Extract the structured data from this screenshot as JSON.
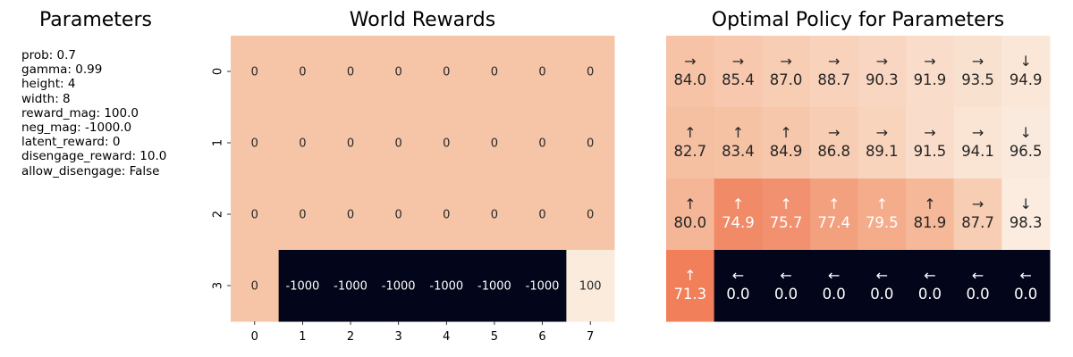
{
  "parameters": {
    "title": "Parameters",
    "lines": [
      "prob: 0.7",
      "gamma: 0.99",
      "height: 4",
      "width: 8",
      "reward_mag: 100.0",
      "neg_mag: -1000.0",
      "latent_reward: 0",
      "disengage_reward: 10.0",
      "allow_disengage: False"
    ]
  },
  "chart_data": [
    {
      "type": "heatmap",
      "title": "World Rewards",
      "xlabel": "",
      "ylabel": "",
      "x_tick_labels": [
        "0",
        "1",
        "2",
        "3",
        "4",
        "5",
        "6",
        "7"
      ],
      "y_tick_labels": [
        "0",
        "1",
        "2",
        "3"
      ],
      "grid": false,
      "values": [
        [
          0,
          0,
          0,
          0,
          0,
          0,
          0,
          0
        ],
        [
          0,
          0,
          0,
          0,
          0,
          0,
          0,
          0
        ],
        [
          0,
          0,
          0,
          0,
          0,
          0,
          0,
          0
        ],
        [
          0,
          -1000,
          -1000,
          -1000,
          -1000,
          -1000,
          -1000,
          100
        ]
      ],
      "colors": [
        [
          "#f6c5a8",
          "#f6c5a8",
          "#f6c5a8",
          "#f6c5a8",
          "#f6c5a8",
          "#f6c5a8",
          "#f6c5a8",
          "#f6c5a8"
        ],
        [
          "#f6c5a8",
          "#f6c5a8",
          "#f6c5a8",
          "#f6c5a8",
          "#f6c5a8",
          "#f6c5a8",
          "#f6c5a8",
          "#f6c5a8"
        ],
        [
          "#f6c5a8",
          "#f6c5a8",
          "#f6c5a8",
          "#f6c5a8",
          "#f6c5a8",
          "#f6c5a8",
          "#f6c5a8",
          "#f6c5a8"
        ],
        [
          "#f6c5a8",
          "#03051a",
          "#03051a",
          "#03051a",
          "#03051a",
          "#03051a",
          "#03051a",
          "#faebdd"
        ]
      ]
    },
    {
      "type": "heatmap",
      "title": "Optimal Policy for Parameters",
      "xlabel": "",
      "ylabel": "",
      "x_tick_labels": [],
      "y_tick_labels": [],
      "grid": false,
      "arrows": [
        [
          "→",
          "→",
          "→",
          "→",
          "→",
          "→",
          "→",
          "↓"
        ],
        [
          "↑",
          "↑",
          "↑",
          "→",
          "→",
          "→",
          "→",
          "↓"
        ],
        [
          "↑",
          "↑",
          "↑",
          "↑",
          "↑",
          "↑",
          "→",
          "↓"
        ],
        [
          "↑",
          "←",
          "←",
          "←",
          "←",
          "←",
          "←",
          "←"
        ]
      ],
      "values": [
        [
          "84.0",
          "85.4",
          "87.0",
          "88.7",
          "90.3",
          "91.9",
          "93.5",
          "94.9"
        ],
        [
          "82.7",
          "83.4",
          "84.9",
          "86.8",
          "89.1",
          "91.5",
          "94.1",
          "96.5"
        ],
        [
          "80.0",
          "74.9",
          "75.7",
          "77.4",
          "79.5",
          "81.9",
          "87.7",
          "98.3"
        ],
        [
          "71.3",
          "0.0",
          "0.0",
          "0.0",
          "0.0",
          "0.0",
          "0.0",
          "0.0"
        ]
      ],
      "colors": [
        [
          "#f6c3a6",
          "#f7c8ad",
          "#f7cdb4",
          "#f8d2ba",
          "#f8d6c1",
          "#f9dcc9",
          "#f9e1d0",
          "#fae7d8"
        ],
        [
          "#f5bfa1",
          "#f6c2a4",
          "#f6c7ab",
          "#f7cdb3",
          "#f8d4bd",
          "#f9ddca",
          "#fae4d3",
          "#faeadd"
        ],
        [
          "#f4b696",
          "#f18a66",
          "#f29170",
          "#f3a07f",
          "#f4ac8b",
          "#f5b898",
          "#f7cdb3",
          "#fbecdf"
        ],
        [
          "#f07f5a",
          "#03051a",
          "#03051a",
          "#03051a",
          "#03051a",
          "#03051a",
          "#03051a",
          "#03051a"
        ]
      ]
    }
  ]
}
